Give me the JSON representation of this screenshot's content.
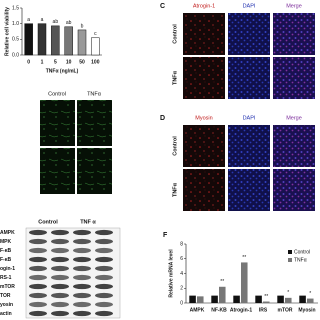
{
  "chart_data": [
    {
      "type": "bar",
      "ylabel": "Relative cell viability",
      "xlabel": "TNFα (ng/mL)",
      "categories": [
        "0",
        "1",
        "5",
        "10",
        "50",
        "100"
      ],
      "values": [
        1.0,
        1.0,
        0.93,
        0.9,
        0.8,
        0.55
      ],
      "colors": [
        "#111111",
        "#333333",
        "#555555",
        "#777777",
        "#999999",
        "#ffffff"
      ],
      "letters": [
        "a",
        "a",
        "ab",
        "ab",
        "b",
        "c"
      ],
      "ylim": [
        0,
        1.5
      ],
      "yticks": [
        {
          "value": 0,
          "label": "0.0"
        },
        0.5,
        {
          "value": 1,
          "label": "1.0"
        },
        1.5
      ]
    },
    {
      "type": "bar",
      "label": "F",
      "ylabel": "Relative mRNA level",
      "categories": [
        "AMPK",
        "NF-KB",
        "Atrogin-1",
        "IRS",
        "mTOR",
        "Myosin"
      ],
      "series": [
        {
          "name": "Control",
          "color": "#111111",
          "values": [
            1,
            1,
            1,
            1,
            1,
            1
          ],
          "marks": [
            null,
            null,
            null,
            null,
            null,
            null
          ]
        },
        {
          "name": "TNFα",
          "color": "#777777",
          "values": [
            0.9,
            2.2,
            5.5,
            0.2,
            0.7,
            0.6
          ],
          "marks": [
            null,
            "**",
            "**",
            "**",
            "*",
            "*"
          ]
        }
      ],
      "ylim": [
        0,
        8
      ],
      "yticks": [
        0,
        2,
        4,
        6,
        8
      ]
    }
  ],
  "panel_b": {
    "columns": [
      "Control",
      "TNFα"
    ]
  },
  "panel_c": {
    "label": "C",
    "columns": [
      "Atrogin-1",
      "DAPI",
      "Merge"
    ],
    "rows": [
      "Control",
      "TNFα"
    ]
  },
  "panel_d": {
    "label": "D",
    "columns": [
      "Myosin",
      "DAPI",
      "Merge"
    ],
    "rows": [
      "Control",
      "TNFα"
    ]
  },
  "panel_e": {
    "columns": [
      "Control",
      "TNF α"
    ],
    "rows": [
      "AMPK",
      "MPK",
      "F-κB",
      "F-κB",
      "ogin-1",
      "RS-1",
      "mTOR",
      "TOR",
      "yosin",
      "actin"
    ]
  }
}
